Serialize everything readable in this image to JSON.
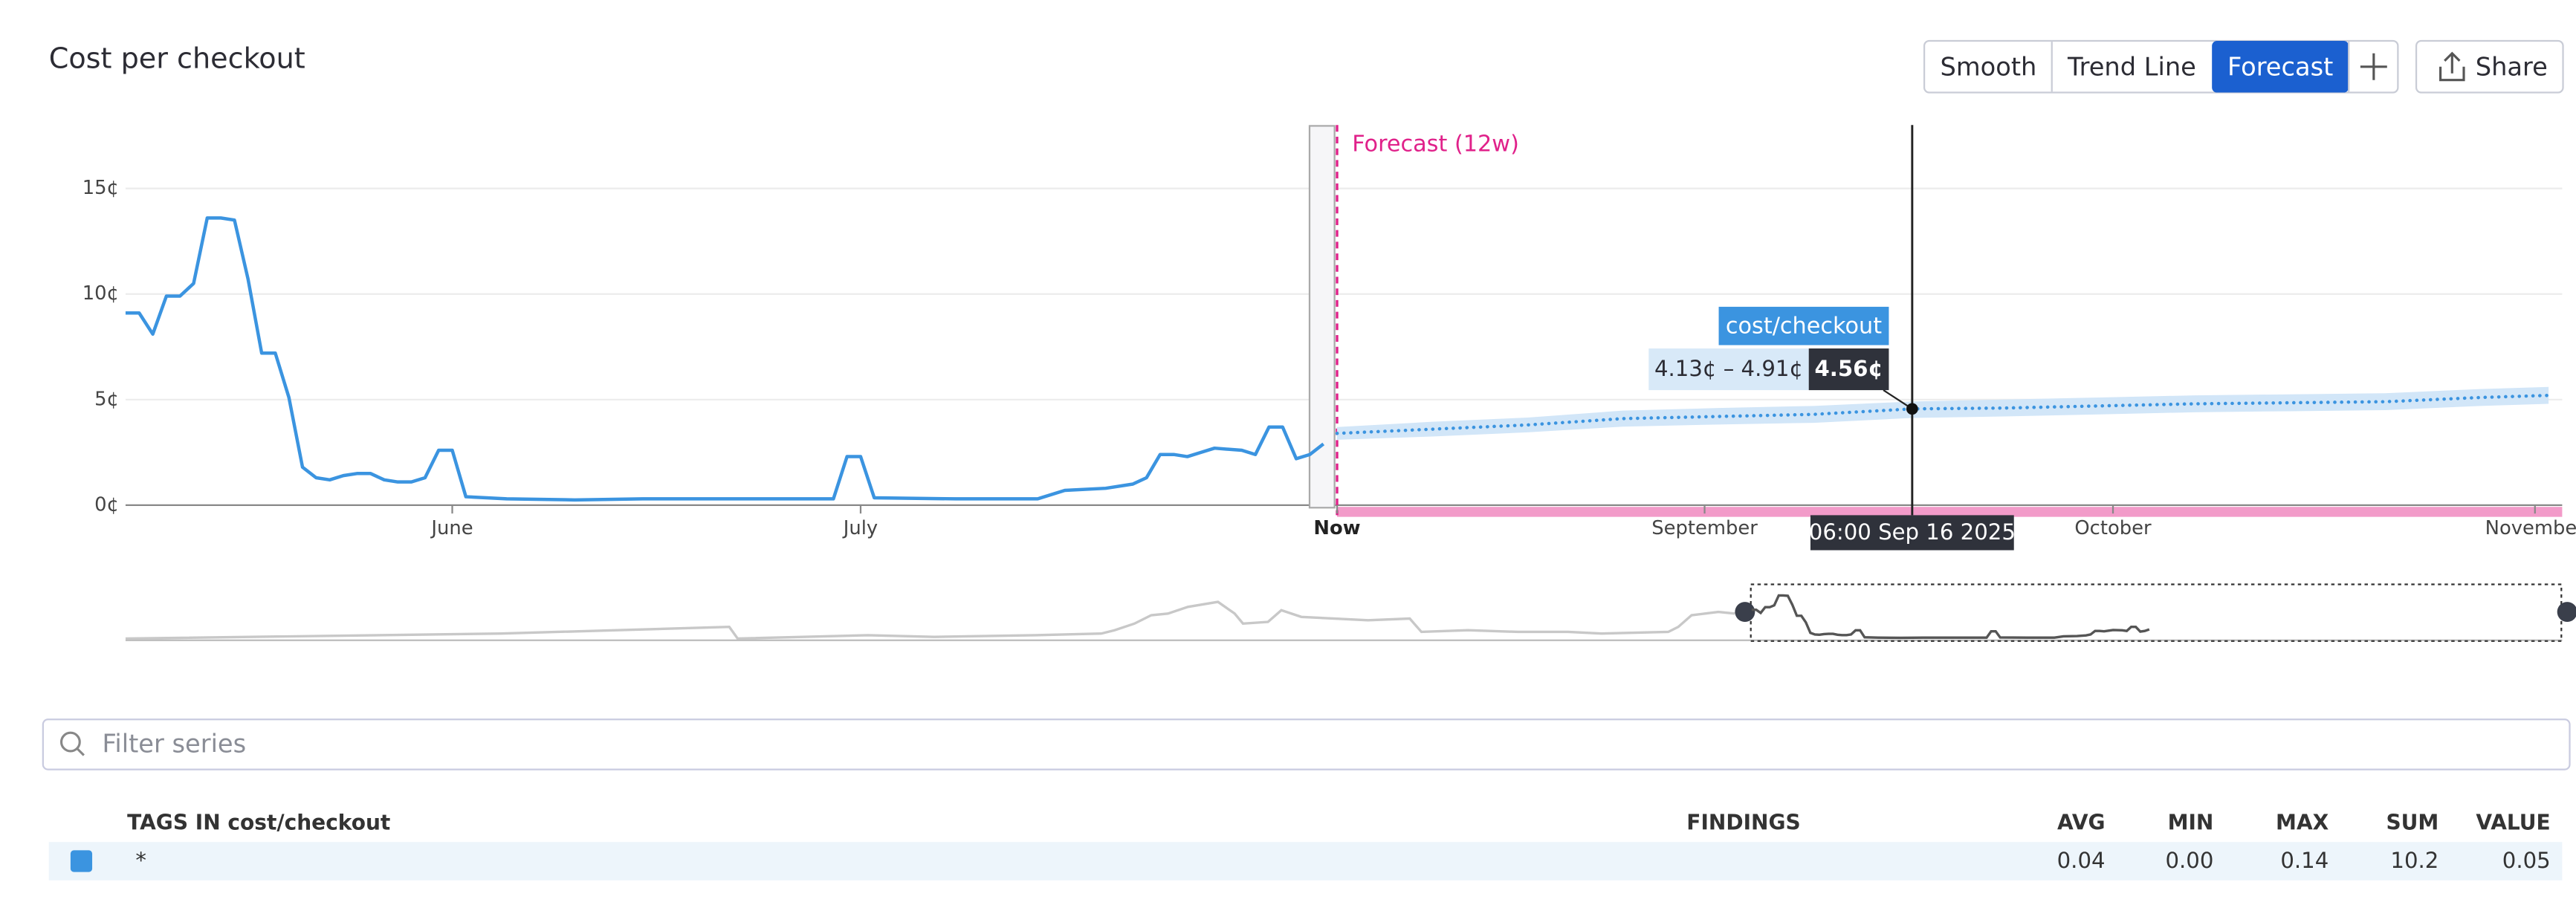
{
  "chart_data": {
    "type": "line",
    "title": "Cost per checkout",
    "x": [
      "2025-05-08",
      "2025-05-09",
      "2025-05-10",
      "2025-05-11",
      "2025-05-12",
      "2025-05-13",
      "2025-05-14",
      "2025-05-15",
      "2025-05-16",
      "2025-05-17",
      "2025-05-18",
      "2025-05-19",
      "2025-05-20",
      "2025-05-21",
      "2025-05-22",
      "2025-05-23",
      "2025-05-24",
      "2025-05-25",
      "2025-05-26",
      "2025-05-27",
      "2025-05-28",
      "2025-05-29",
      "2025-05-30",
      "2025-05-31",
      "2025-06-01",
      "2025-06-02",
      "2025-06-05",
      "2025-06-10",
      "2025-06-15",
      "2025-06-20",
      "2025-06-25",
      "2025-06-29",
      "2025-06-30",
      "2025-07-01",
      "2025-07-02",
      "2025-07-08",
      "2025-07-14",
      "2025-07-16",
      "2025-07-19",
      "2025-07-21",
      "2025-07-22",
      "2025-07-23",
      "2025-07-24",
      "2025-07-25",
      "2025-07-26",
      "2025-07-27",
      "2025-07-29",
      "2025-07-30",
      "2025-07-31",
      "2025-08-01",
      "2025-08-02",
      "2025-08-03",
      "2025-08-04"
    ],
    "series": [
      {
        "name": "cost/checkout",
        "color": "#3b94e0",
        "values": [
          9.1,
          9.1,
          8.1,
          9.9,
          9.9,
          10.5,
          13.6,
          13.6,
          13.5,
          10.7,
          7.2,
          7.2,
          5.1,
          1.8,
          1.3,
          1.2,
          1.4,
          1.5,
          1.5,
          1.2,
          1.1,
          1.1,
          1.3,
          2.6,
          2.6,
          0.4,
          0.3,
          0.25,
          0.3,
          0.3,
          0.3,
          0.3,
          2.3,
          2.3,
          0.35,
          0.3,
          0.3,
          0.7,
          0.8,
          1.0,
          1.3,
          2.4,
          2.4,
          2.3,
          2.5,
          2.7,
          2.6,
          2.4,
          3.7,
          3.7,
          2.2,
          2.4,
          2.9
        ]
      }
    ],
    "forecast": {
      "label": "Forecast (12w)",
      "color": "#e0218a",
      "x": [
        "2025-08-05",
        "2025-08-12",
        "2025-08-19",
        "2025-08-26",
        "2025-09-02",
        "2025-09-09",
        "2025-09-16T06:00",
        "2025-09-23",
        "2025-09-30",
        "2025-10-07",
        "2025-10-14",
        "2025-10-21",
        "2025-10-28",
        "2025-11-02"
      ],
      "values": [
        3.4,
        3.6,
        3.8,
        4.1,
        4.2,
        4.3,
        4.56,
        4.6,
        4.7,
        4.8,
        4.85,
        4.9,
        5.1,
        5.2
      ],
      "lower": [
        3.1,
        3.25,
        3.45,
        3.72,
        3.82,
        3.9,
        4.13,
        4.2,
        4.3,
        4.4,
        4.45,
        4.5,
        4.7,
        4.8
      ],
      "upper": [
        3.7,
        3.95,
        4.15,
        4.48,
        4.6,
        4.7,
        4.91,
        5.0,
        5.1,
        5.2,
        5.25,
        5.3,
        5.5,
        5.6
      ]
    },
    "xlim": [
      "2025-05-08",
      "2025-11-03"
    ],
    "xticks": [
      {
        "value": "2025-06-01",
        "label": "June"
      },
      {
        "value": "2025-07-01",
        "label": "July"
      },
      {
        "value": "2025-08-05",
        "label": "Now"
      },
      {
        "value": "2025-09-01",
        "label": "September"
      },
      {
        "value": "2025-10-01",
        "label": "October"
      },
      {
        "value": "2025-11-01",
        "label": "November"
      }
    ],
    "ylim": [
      0,
      18
    ],
    "yticks": [
      {
        "value": 0,
        "label": "0¢"
      },
      {
        "value": 5,
        "label": "5¢"
      },
      {
        "value": 10,
        "label": "10¢"
      },
      {
        "value": 15,
        "label": "15¢"
      }
    ],
    "grid": true,
    "tooltip": {
      "x": "2025-09-16T06:00",
      "series": "cost/checkout",
      "range": "4.13¢ – 4.91¢",
      "value": "4.56¢",
      "time": "06:00 Sep 16 2025"
    }
  },
  "toolbar": {
    "buttons": [
      "Smooth",
      "Trend Line",
      "Forecast"
    ],
    "active": 2,
    "share": "Share"
  },
  "filter": {
    "placeholder": "Filter series"
  },
  "table": {
    "headers": [
      "TAGS IN cost/checkout",
      "FINDINGS",
      "AVG",
      "MIN",
      "MAX",
      "SUM",
      "VALUE"
    ],
    "rows": [
      [
        "*",
        "",
        "0.04",
        "0.00",
        "0.14",
        "10.2",
        "0.05"
      ]
    ]
  }
}
